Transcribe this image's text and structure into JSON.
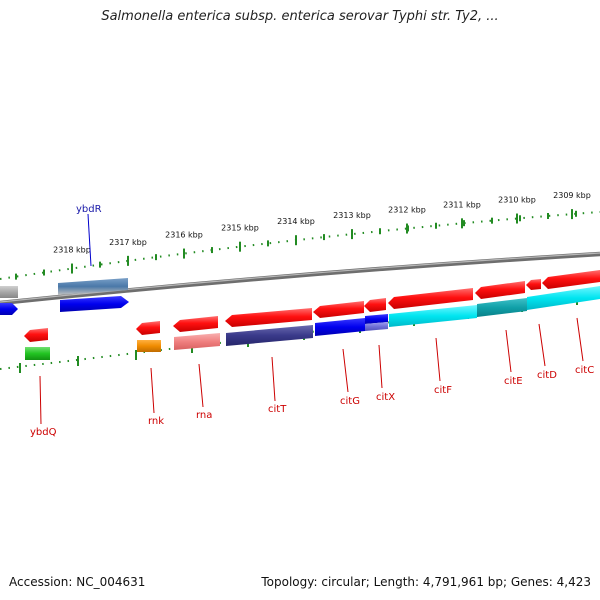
{
  "title": "Salmonella enterica subsp. enterica serovar Typhi str. Ty2, ...",
  "footer": {
    "accession": "Accession: NC_004631",
    "topology": "Topology: circular; Length: 4,791,961 bp; Genes: 4,423"
  },
  "scale": {
    "unit": "kbp",
    "labels": [
      "2318 kbp",
      "2317 kbp",
      "2316 kbp",
      "2315 kbp",
      "2314 kbp",
      "2313 kbp",
      "2312 kbp",
      "2311 kbp",
      "2310 kbp",
      "2309 kbp"
    ]
  },
  "genes": [
    {
      "name": "ybdR",
      "color": "#2a2ad0"
    },
    {
      "name": "ybdQ",
      "color": "#cc0000"
    },
    {
      "name": "rnk",
      "color": "#cc0000"
    },
    {
      "name": "rna",
      "color": "#cc0000"
    },
    {
      "name": "citT",
      "color": "#cc0000"
    },
    {
      "name": "citG",
      "color": "#cc0000"
    },
    {
      "name": "citX",
      "color": "#cc0000"
    },
    {
      "name": "citF",
      "color": "#cc0000"
    },
    {
      "name": "citE",
      "color": "#cc0000"
    },
    {
      "name": "citD",
      "color": "#cc0000"
    },
    {
      "name": "citC",
      "color": "#cc0000"
    }
  ],
  "colors": {
    "forward_cds": "#ff1010",
    "reverse_cds": "#0000ee",
    "cyan_feature": "#00e5f0",
    "navy_feature": "#3a3a8a",
    "pink_feature": "#f08080",
    "green_feature": "#22c422",
    "orange_feature": "#f08c00",
    "steel_feature": "#4a78a8",
    "grey_feature": "#a8a8a8",
    "backbone": "#808080",
    "ticks": "#228b22"
  }
}
